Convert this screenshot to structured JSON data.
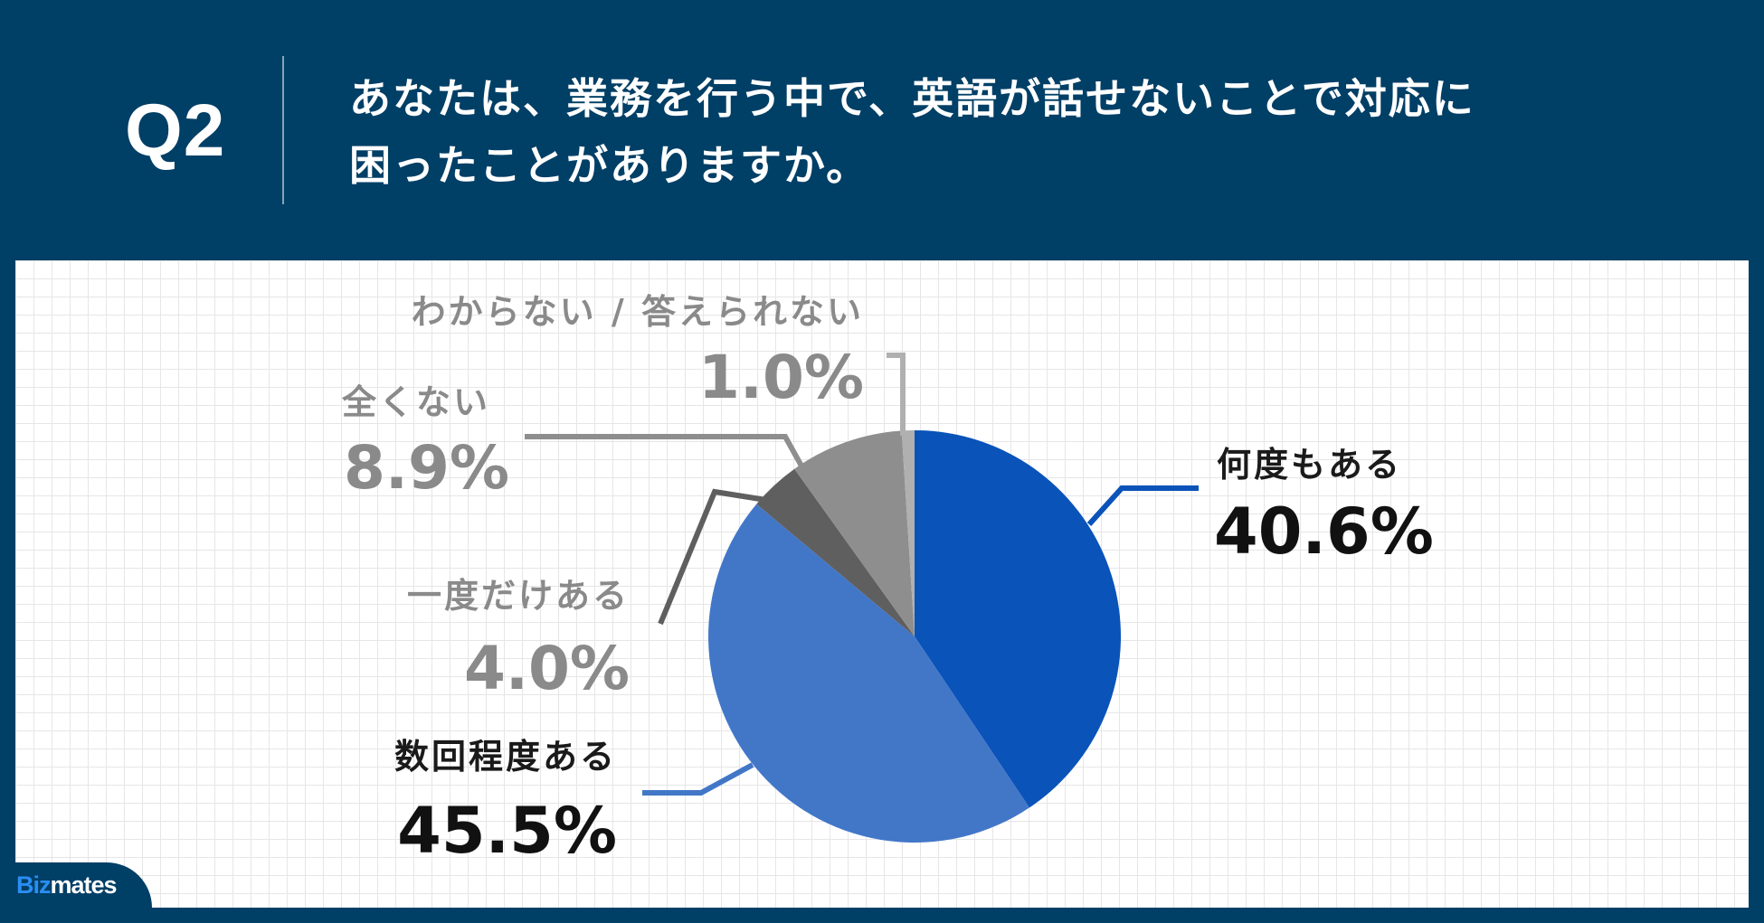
{
  "header": {
    "question_number": "Q2",
    "question_line1": "あなたは、業務を行う中で、英語が話せないことで対応に",
    "question_line2": "困ったことがありますか。"
  },
  "brand": {
    "prefix": "Biz",
    "suffix": "mates"
  },
  "colors": {
    "background": "#003f66",
    "blue_dark": "#0a53b8",
    "blue_light": "#4277c8",
    "gray_dark": "#5f5f5f",
    "gray_mid": "#8e8e8e",
    "gray_light": "#b0b0b0",
    "label_gray": "#8a8a8a"
  },
  "chart_data": {
    "type": "pie",
    "title": "",
    "slices": [
      {
        "label": "何度もある",
        "value": 40.6,
        "display": "40.6%",
        "color": "#0a53b8"
      },
      {
        "label": "数回程度ある",
        "value": 45.5,
        "display": "45.5%",
        "color": "#4277c8"
      },
      {
        "label": "一度だけある",
        "value": 4.0,
        "display": "4.0%",
        "color": "#5f5f5f"
      },
      {
        "label": "全くない",
        "value": 8.9,
        "display": "8.9%",
        "color": "#8e8e8e"
      },
      {
        "label": "わからない / 答えられない",
        "value": 1.0,
        "display": "1.0%",
        "color": "#b0b0b0"
      }
    ]
  }
}
